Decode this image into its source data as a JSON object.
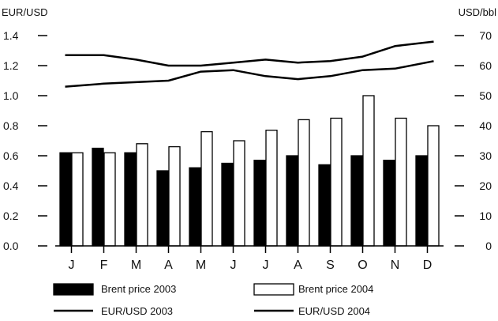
{
  "chart_data": {
    "type": "bar",
    "ylabel_left": "EUR/USD",
    "ylabel_right": "USD/bbl",
    "categories": [
      "J",
      "F",
      "M",
      "A",
      "M",
      "J",
      "J",
      "A",
      "S",
      "O",
      "N",
      "D"
    ],
    "left_axis": {
      "ylim": [
        0.0,
        1.4
      ],
      "ticks": [
        "0.0",
        "0.2",
        "0.4",
        "0.6",
        "0.8",
        "1.0",
        "1.2",
        "1.4"
      ]
    },
    "right_axis": {
      "ylim": [
        0,
        70
      ],
      "ticks": [
        "0",
        "10",
        "20",
        "30",
        "40",
        "50",
        "60",
        "70"
      ]
    },
    "bar_series": [
      {
        "name": "Brent price 2003",
        "axis": "right",
        "color": "#000000",
        "values": [
          31,
          32.5,
          31,
          25,
          26,
          27.5,
          28.5,
          30,
          27,
          30,
          28.5,
          30
        ]
      },
      {
        "name": "Brent price 2004",
        "axis": "right",
        "color": "#ffffff",
        "values": [
          31,
          31,
          34,
          33,
          38,
          35,
          38.5,
          42,
          42.5,
          50,
          42.5,
          40
        ]
      }
    ],
    "line_series": [
      {
        "name": "EUR/USD 2003",
        "axis": "left",
        "values": [
          1.06,
          1.08,
          1.09,
          1.1,
          1.16,
          1.17,
          1.13,
          1.11,
          1.13,
          1.17,
          1.18,
          1.23
        ]
      },
      {
        "name": "EUR/USD 2004",
        "axis": "left",
        "values": [
          1.27,
          1.27,
          1.24,
          1.2,
          1.2,
          1.22,
          1.24,
          1.22,
          1.23,
          1.26,
          1.33,
          1.36
        ]
      }
    ],
    "grid": false,
    "legend_position": "bottom"
  }
}
